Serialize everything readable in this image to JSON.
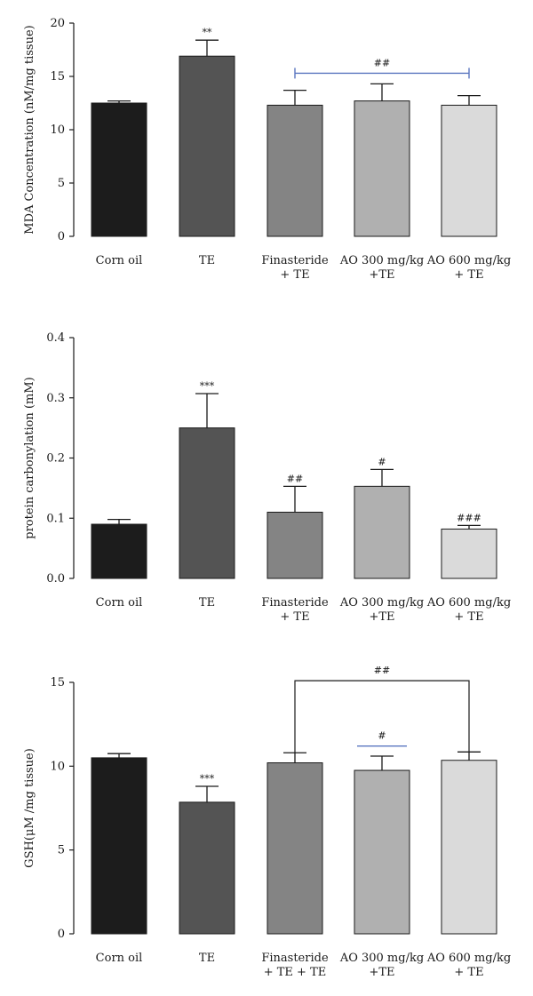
{
  "chart_data": [
    {
      "type": "bar",
      "ylabel": "MDA Concentration (nM/mg tissue)",
      "ylim": [
        0,
        20
      ],
      "yticks": [
        0,
        5,
        10,
        15,
        20
      ],
      "categories": [
        [
          "Corn oil"
        ],
        [
          "TE"
        ],
        [
          "Finasteride",
          "+ TE"
        ],
        [
          "AO 300 mg/kg",
          "+TE"
        ],
        [
          "AO 600 mg/kg",
          "+ TE"
        ]
      ],
      "values": [
        12.5,
        16.9,
        12.3,
        12.7,
        12.3
      ],
      "errors": [
        0.2,
        1.5,
        1.4,
        1.6,
        0.9
      ],
      "bar_colors": [
        "#1c1c1c",
        "#545454",
        "#848484",
        "#b0b0b0",
        "#dadada"
      ],
      "significance": [
        "",
        "**",
        "",
        "",
        ""
      ],
      "brackets": [
        {
          "from": 2,
          "to": 4,
          "label": "##",
          "color": "#5a76c0",
          "style": "line",
          "y": 15.3
        }
      ]
    },
    {
      "type": "bar",
      "ylabel": "protein carbonylation (mM)",
      "ylim": [
        0,
        0.4
      ],
      "yticks": [
        "0.0",
        "0.1",
        "0.2",
        "0.3",
        "0.4"
      ],
      "categories": [
        [
          "Corn oil"
        ],
        [
          "TE"
        ],
        [
          "Finasteride",
          "+ TE"
        ],
        [
          "AO 300 mg/kg",
          "+TE"
        ],
        [
          "AO 600 mg/kg",
          "+ TE"
        ]
      ],
      "values": [
        0.09,
        0.25,
        0.11,
        0.153,
        0.082
      ],
      "errors": [
        0.008,
        0.057,
        0.043,
        0.028,
        0.006
      ],
      "bar_colors": [
        "#1c1c1c",
        "#545454",
        "#848484",
        "#b0b0b0",
        "#dadada"
      ],
      "significance": [
        "",
        "***",
        "##",
        "#",
        "###"
      ],
      "brackets": []
    },
    {
      "type": "bar",
      "ylabel": "GSH(μM /mg tissue)",
      "ylim": [
        0,
        15
      ],
      "yticks": [
        0,
        5,
        10,
        15
      ],
      "categories": [
        [
          "Corn oil"
        ],
        [
          "TE"
        ],
        [
          "Finasteride",
          "+ TE + TE"
        ],
        [
          "AO 300 mg/kg",
          "+TE"
        ],
        [
          "AO 600 mg/kg",
          "+ TE"
        ]
      ],
      "values": [
        10.5,
        7.85,
        10.2,
        9.75,
        10.35
      ],
      "errors": [
        0.25,
        0.95,
        0.6,
        0.85,
        0.5
      ],
      "bar_colors": [
        "#1c1c1c",
        "#545454",
        "#848484",
        "#b0b0b0",
        "#dadada"
      ],
      "significance": [
        "",
        "***",
        "",
        "",
        ""
      ],
      "brackets": [
        {
          "from": 2,
          "to": 4,
          "label": "##",
          "color": "#1a1a1a",
          "style": "bracket",
          "y": 15.1
        },
        {
          "from": 3,
          "to": 3,
          "label": "#",
          "color": "#5a76c0",
          "style": "line",
          "y": 11.2
        }
      ]
    }
  ]
}
